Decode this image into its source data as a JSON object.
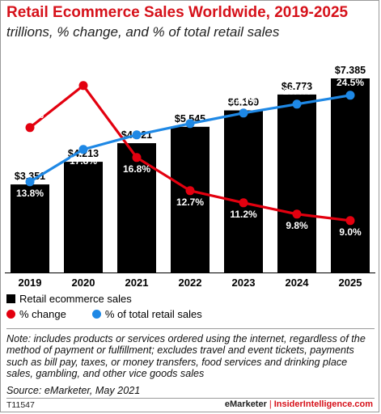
{
  "header": {
    "title": "Retail Ecommerce Sales Worldwide, 2019-2025",
    "subtitle": "trillions, % change, and % of total retail sales"
  },
  "legend": {
    "bars": "Retail ecommerce sales",
    "change": "% change",
    "share": "% of total retail sales"
  },
  "colors": {
    "title": "#d6111a",
    "bars": "#000000",
    "change": "#e3000f",
    "share": "#1e88e5"
  },
  "chart_data": {
    "type": "bar",
    "categories": [
      "2019",
      "2020",
      "2021",
      "2022",
      "2023",
      "2024",
      "2025"
    ],
    "series": [
      {
        "name": "Retail ecommerce sales",
        "type": "bar",
        "values": [
          3.351,
          4.213,
          4.921,
          5.545,
          6.169,
          6.773,
          7.385
        ],
        "labels": [
          "$3.351",
          "$4.213",
          "$4.921",
          "$5.545",
          "$6.169",
          "$6.773",
          "$7.385"
        ]
      },
      {
        "name": "% change",
        "type": "line",
        "values": [
          20.5,
          25.7,
          16.8,
          12.7,
          11.2,
          9.8,
          9.0
        ],
        "labels": [
          "20.5%",
          "25.7%",
          "16.8%",
          "12.7%",
          "11.2%",
          "9.8%",
          "9.0%"
        ]
      },
      {
        "name": "% of total retail sales",
        "type": "line",
        "values": [
          13.8,
          17.8,
          19.6,
          21.0,
          22.3,
          23.4,
          24.5
        ],
        "labels": [
          "13.8%",
          "17.8%",
          "19.6%",
          "21.0%",
          "22.3%",
          "23.4%",
          "24.5%"
        ]
      }
    ],
    "ylim_bars": [
      0,
      7.385
    ],
    "ylim_pct": [
      0,
      30
    ],
    "grid": false,
    "legend_position": "bottom-left"
  },
  "footer": {
    "note": "Note: includes products or services ordered using the internet, regardless of the method of payment or fulfillment; excludes travel and event tickets, payments such as bill pay, taxes, or money transfers, food services and drinking place sales, gambling, and other vice goods sales",
    "source": "Source: eMarketer, May 2021",
    "chart_id": "T11547",
    "brand_left": "eMarketer",
    "brand_sep": "|",
    "brand_right": "InsiderIntelligence.com"
  }
}
